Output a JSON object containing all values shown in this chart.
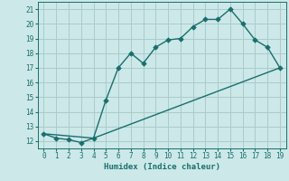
{
  "xlabel": "Humidex (Indice chaleur)",
  "bg_color": "#cce8e8",
  "grid_color": "#aacccc",
  "line_color": "#1a6e6e",
  "line1_x": [
    0,
    1,
    2,
    3,
    4,
    5,
    6,
    7,
    8,
    9,
    10,
    11,
    12,
    13,
    14,
    15,
    16,
    17,
    18,
    19
  ],
  "line1_y": [
    12.5,
    12.2,
    12.1,
    11.9,
    12.2,
    14.8,
    17.0,
    18.0,
    17.3,
    18.4,
    18.9,
    19.0,
    19.8,
    20.3,
    20.3,
    21.0,
    20.0,
    18.9,
    18.4,
    17.0
  ],
  "line2_x": [
    0,
    4,
    19
  ],
  "line2_y": [
    12.5,
    12.2,
    17.0
  ],
  "xlim": [
    -0.5,
    19.5
  ],
  "ylim": [
    11.5,
    21.5
  ],
  "yticks": [
    12,
    13,
    14,
    15,
    16,
    17,
    18,
    19,
    20,
    21
  ],
  "xticks": [
    0,
    1,
    2,
    3,
    4,
    5,
    6,
    7,
    8,
    9,
    10,
    11,
    12,
    13,
    14,
    15,
    16,
    17,
    18,
    19
  ],
  "markersize": 2.8,
  "linewidth": 1.0,
  "tick_fontsize": 5.5,
  "label_fontsize": 6.5
}
